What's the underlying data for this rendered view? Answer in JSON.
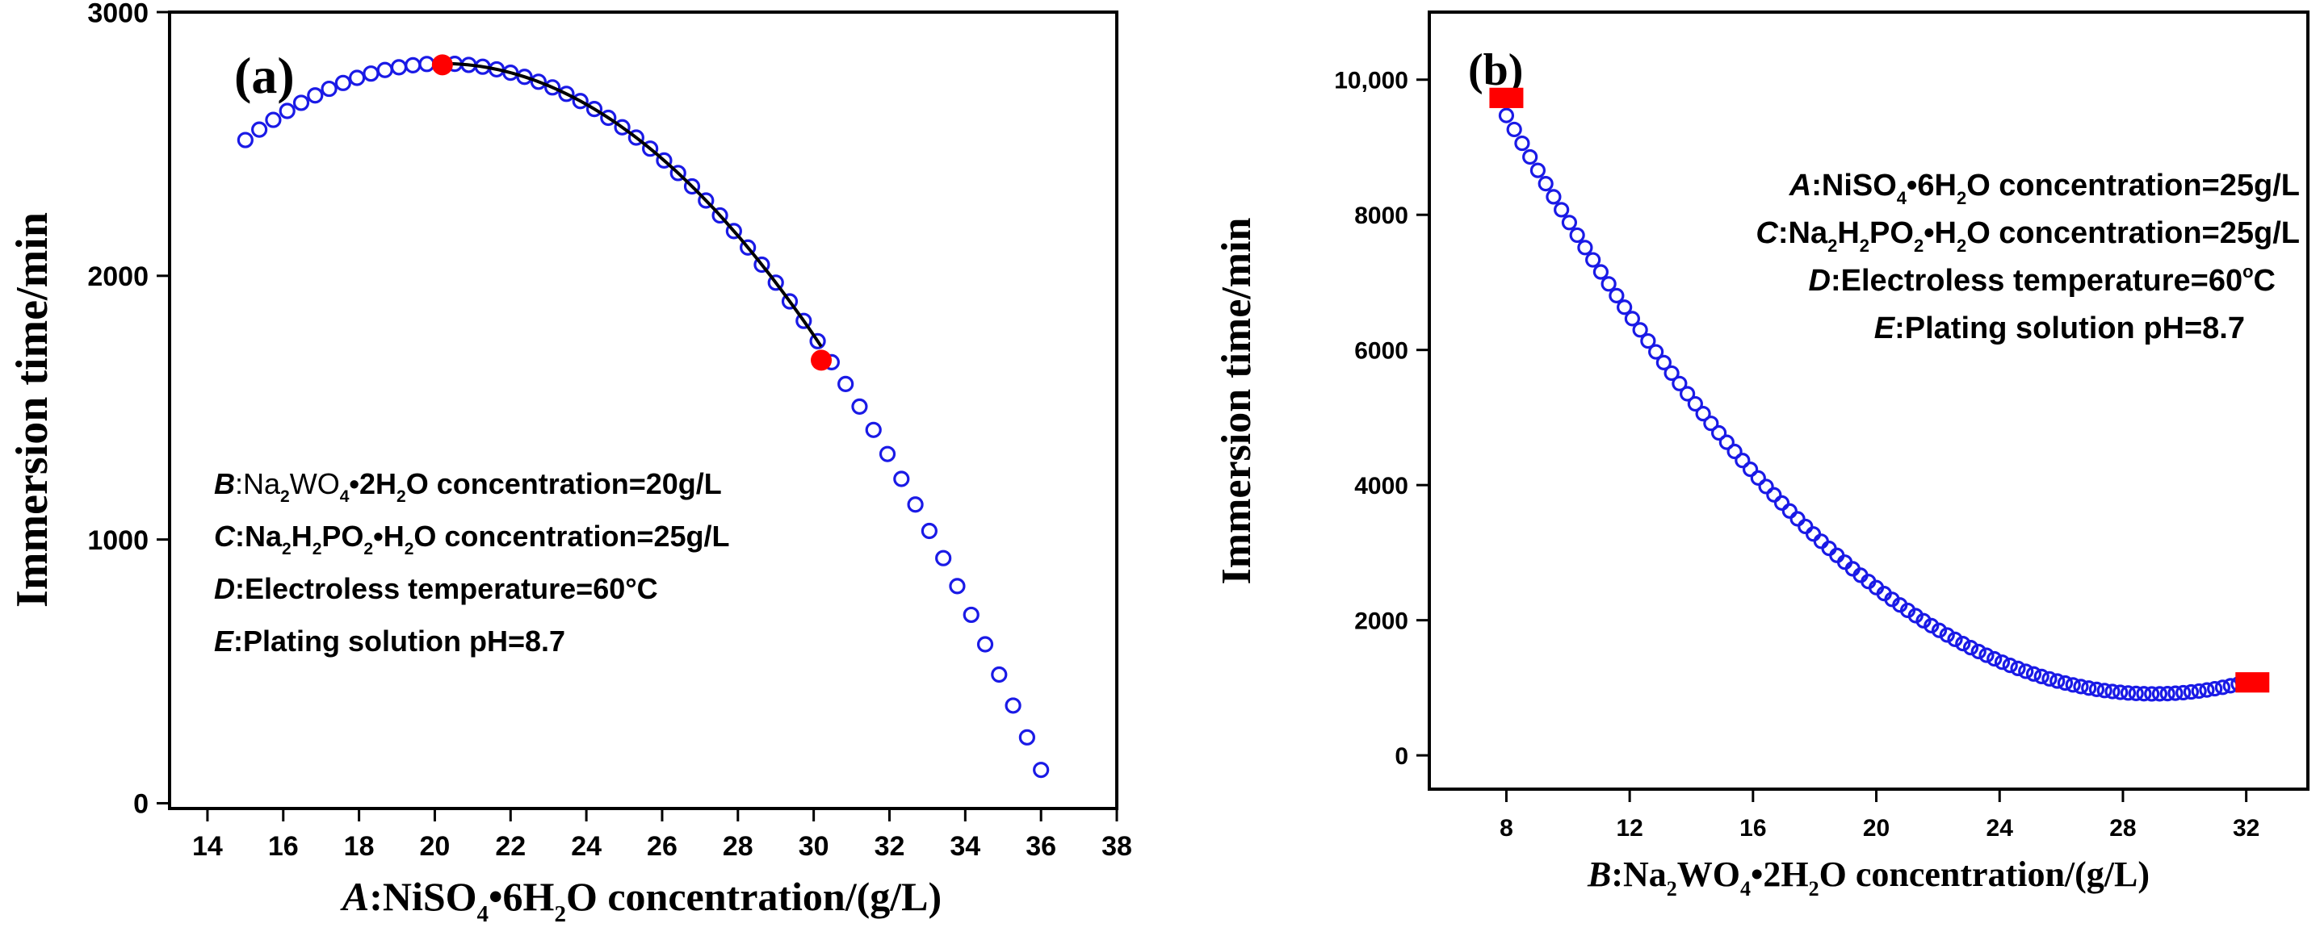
{
  "chart_data": [
    {
      "type": "scatter",
      "panel_label": "(a)",
      "xlabel_parts": [
        {
          "t": "A",
          "italic": true
        },
        {
          "t": ":NiSO"
        },
        {
          "t": "4",
          "sub": true
        },
        {
          "t": "•6H"
        },
        {
          "t": "2",
          "sub": true
        },
        {
          "t": "O concentration/(g/L)"
        }
      ],
      "ylabel": "Immersion time/min",
      "xlim": [
        13,
        38
      ],
      "ylim": [
        -20,
        3000
      ],
      "xticks": [
        "14",
        "16",
        "18",
        "20",
        "22",
        "24",
        "26",
        "28",
        "30",
        "32",
        "34",
        "36",
        "38"
      ],
      "yticks": [
        "0",
        "1000",
        "2000",
        "3000"
      ],
      "series": {
        "name": "fitted curve",
        "x_start": 15,
        "x_end": 36,
        "n_points": 58,
        "quadratic": {
          "vertex_x": 20.2,
          "vertex_y": 2805,
          "a": -10.73
        }
      },
      "highlight_segment": {
        "x_from": 20.2,
        "x_to": 30.2
      },
      "highlight_points": [
        {
          "x": 20.2,
          "y": 2800
        },
        {
          "x": 30.2,
          "y": 1680
        }
      ],
      "conditions": [
        [
          {
            "t": "B",
            "italic": true
          },
          {
            "t": ":Na",
            "normal": true
          },
          {
            "t": "2",
            "sub": true
          },
          {
            "t": "WO",
            "normal": true
          },
          {
            "t": "4",
            "sub": true
          },
          {
            "t": "•2H"
          },
          {
            "t": "2",
            "sub": true
          },
          {
            "t": "O concentration=20g/L"
          }
        ],
        [
          {
            "t": "C",
            "italic": true
          },
          {
            "t": ":Na"
          },
          {
            "t": "2",
            "sub": true
          },
          {
            "t": "H"
          },
          {
            "t": "2",
            "sub": true
          },
          {
            "t": "PO"
          },
          {
            "t": "2",
            "sub": true
          },
          {
            "t": "•H"
          },
          {
            "t": "2",
            "sub": true
          },
          {
            "t": "O concentration=25g/L"
          }
        ],
        [
          {
            "t": "D",
            "italic": true
          },
          {
            "t": ":Electroless temperature=60°C"
          }
        ],
        [
          {
            "t": "E",
            "italic": true
          },
          {
            "t": ":Plating solution pH=8.7"
          }
        ]
      ],
      "colors": {
        "series": "#1a1ae6",
        "highlight": "#ff0000",
        "fit_line": "#000000"
      }
    },
    {
      "type": "scatter",
      "panel_label": "(b)",
      "xlabel_parts": [
        {
          "t": "B",
          "italic": true
        },
        {
          "t": ":Na"
        },
        {
          "t": "2",
          "sub": true
        },
        {
          "t": "WO"
        },
        {
          "t": "4",
          "sub": true
        },
        {
          "t": "•2H"
        },
        {
          "t": "2",
          "sub": true
        },
        {
          "t": "O concentration/(g/L)"
        }
      ],
      "ylabel": "Immersion time/min",
      "xlim": [
        5.5,
        34
      ],
      "ylim": [
        -500,
        11000
      ],
      "xticks": [
        "8",
        "12",
        "16",
        "20",
        "24",
        "28",
        "32"
      ],
      "yticks": [
        "0",
        "2000",
        "4000",
        "6000",
        "8000",
        "10,000"
      ],
      "series": {
        "name": "fitted curve",
        "x_start": 8,
        "x_end": 32,
        "n_points": 95,
        "quadratic": {
          "vertex_x": 29.0,
          "vertex_y": 910,
          "a": 19.41
        }
      },
      "highlight_points": [
        {
          "x": 8,
          "y": 9730
        },
        {
          "x": 32.2,
          "y": 1080
        }
      ],
      "conditions": [
        [
          {
            "t": "A",
            "italic": true
          },
          {
            "t": ":NiSO"
          },
          {
            "t": "4",
            "sub": true
          },
          {
            "t": "•6H"
          },
          {
            "t": "2",
            "sub": true
          },
          {
            "t": "O concentration=25g/L"
          }
        ],
        [
          {
            "t": "C",
            "italic": true
          },
          {
            "t": ":Na"
          },
          {
            "t": "2",
            "sub": true
          },
          {
            "t": "H"
          },
          {
            "t": "2",
            "sub": true
          },
          {
            "t": "PO"
          },
          {
            "t": "2",
            "sub": true
          },
          {
            "t": "•H"
          },
          {
            "t": "2",
            "sub": true
          },
          {
            "t": "O concentration=25g/L"
          }
        ],
        [
          {
            "t": "D",
            "italic": true
          },
          {
            "t": ":Electroless temperature=60"
          },
          {
            "t": "o",
            "sup": true
          },
          {
            "t": "C"
          }
        ],
        [
          {
            "t": "E",
            "italic": true
          },
          {
            "t": ":Plating solution pH=8.7"
          }
        ]
      ],
      "colors": {
        "series": "#1a1ae6",
        "highlight": "#ff0000"
      }
    }
  ]
}
